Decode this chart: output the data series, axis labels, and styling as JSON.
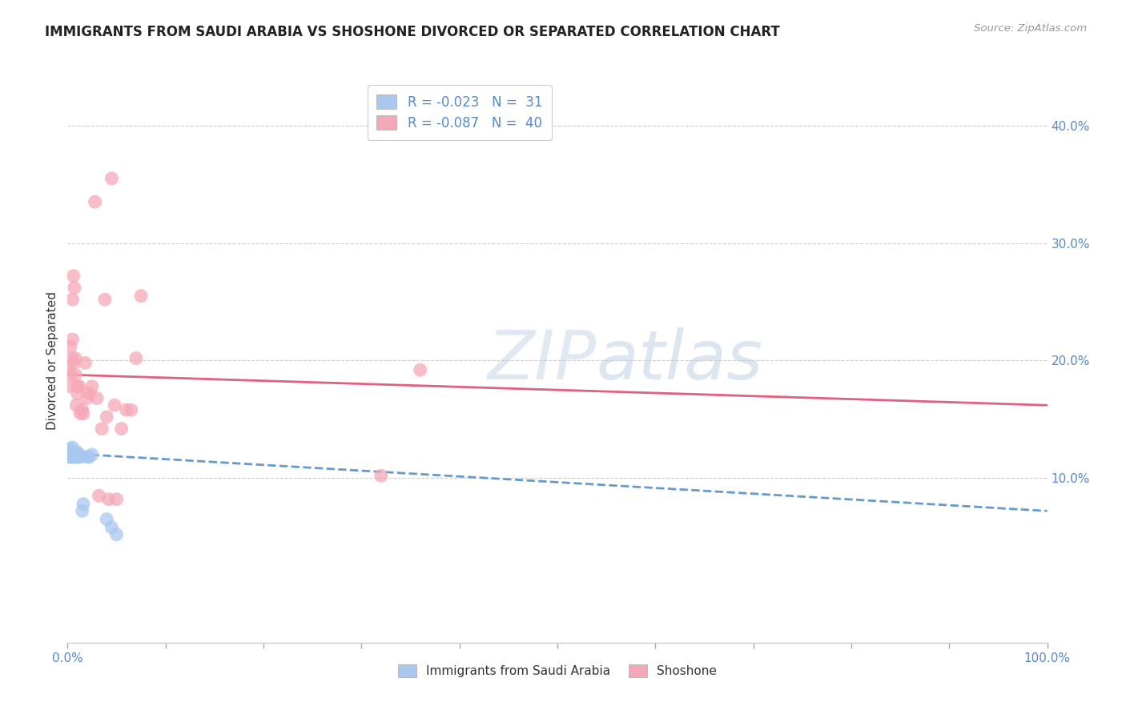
{
  "title": "IMMIGRANTS FROM SAUDI ARABIA VS SHOSHONE DIVORCED OR SEPARATED CORRELATION CHART",
  "source": "Source: ZipAtlas.com",
  "ylabel": "Divorced or Separated",
  "right_yticks": [
    "10.0%",
    "20.0%",
    "30.0%",
    "40.0%"
  ],
  "right_ytick_vals": [
    0.1,
    0.2,
    0.3,
    0.4
  ],
  "color_blue": "#a8c8f0",
  "color_pink": "#f5a8b8",
  "trendline_blue": "#6699cc",
  "trendline_pink": "#e06080",
  "blue_scatter_x": [
    0.001,
    0.002,
    0.002,
    0.003,
    0.003,
    0.004,
    0.004,
    0.005,
    0.005,
    0.005,
    0.006,
    0.006,
    0.007,
    0.007,
    0.008,
    0.008,
    0.009,
    0.009,
    0.01,
    0.01,
    0.012,
    0.012,
    0.013,
    0.015,
    0.016,
    0.02,
    0.022,
    0.025,
    0.04,
    0.045,
    0.05
  ],
  "blue_scatter_y": [
    0.12,
    0.125,
    0.118,
    0.118,
    0.122,
    0.118,
    0.122,
    0.118,
    0.12,
    0.126,
    0.12,
    0.122,
    0.118,
    0.122,
    0.118,
    0.12,
    0.12,
    0.118,
    0.118,
    0.122,
    0.118,
    0.12,
    0.118,
    0.072,
    0.078,
    0.118,
    0.118,
    0.12,
    0.065,
    0.058,
    0.052
  ],
  "pink_scatter_x": [
    0.001,
    0.002,
    0.003,
    0.003,
    0.004,
    0.005,
    0.005,
    0.006,
    0.007,
    0.007,
    0.008,
    0.008,
    0.009,
    0.01,
    0.01,
    0.012,
    0.013,
    0.015,
    0.016,
    0.018,
    0.02,
    0.022,
    0.025,
    0.028,
    0.03,
    0.032,
    0.035,
    0.038,
    0.04,
    0.042,
    0.045,
    0.048,
    0.05,
    0.055,
    0.06,
    0.065,
    0.07,
    0.075,
    0.32,
    0.36
  ],
  "pink_scatter_y": [
    0.195,
    0.178,
    0.188,
    0.212,
    0.202,
    0.218,
    0.252,
    0.272,
    0.198,
    0.262,
    0.188,
    0.202,
    0.162,
    0.172,
    0.178,
    0.178,
    0.155,
    0.158,
    0.155,
    0.198,
    0.168,
    0.172,
    0.178,
    0.335,
    0.168,
    0.085,
    0.142,
    0.252,
    0.152,
    0.082,
    0.355,
    0.162,
    0.082,
    0.142,
    0.158,
    0.158,
    0.202,
    0.255,
    0.102,
    0.192
  ],
  "xlim": [
    0.0,
    1.0
  ],
  "ylim": [
    -0.04,
    0.44
  ],
  "blue_trend_start_y": 0.121,
  "blue_trend_end_y": 0.072,
  "pink_trend_start_y": 0.188,
  "pink_trend_end_y": 0.162,
  "watermark_text": "ZIPatlas",
  "legend1_labels": [
    "R = -0.023   N =  31",
    "R = -0.087   N =  40"
  ],
  "legend2_labels": [
    "Immigrants from Saudi Arabia",
    "Shoshone"
  ]
}
